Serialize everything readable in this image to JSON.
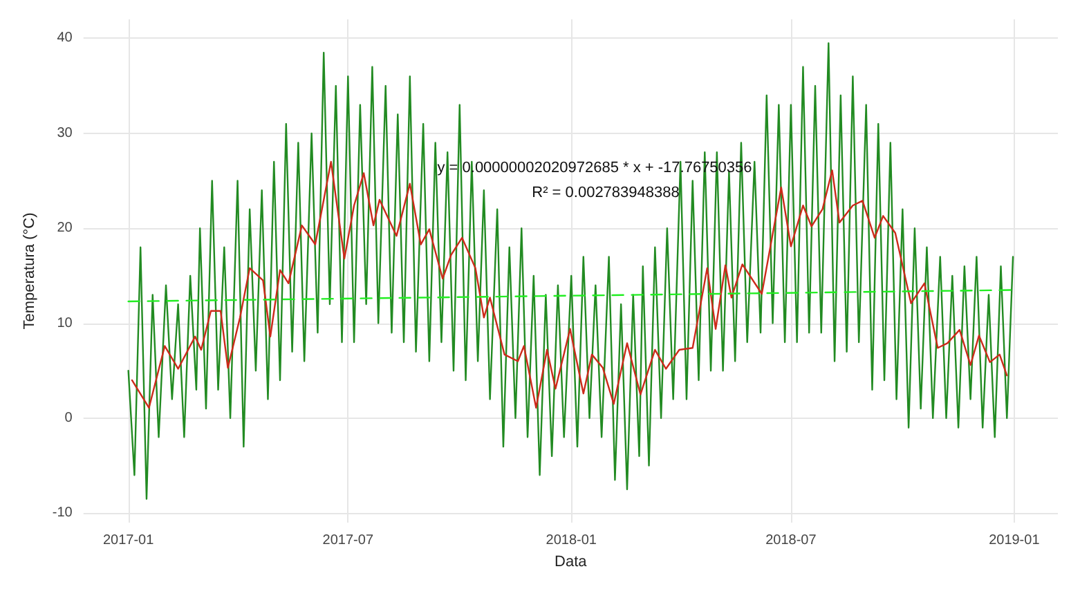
{
  "chart_data": {
    "type": "line",
    "xlabel": "Data",
    "ylabel": "Temperatura (°C)",
    "xlim": [
      "2016-11-25",
      "2019-02-06"
    ],
    "xticks": [
      "2017-01",
      "2017-07",
      "2018-01",
      "2018-07",
      "2019-01"
    ],
    "ylim": [
      -11,
      42
    ],
    "yticks": [
      -10,
      0,
      10,
      20,
      30,
      40
    ],
    "grid": true,
    "marker": "none",
    "annotations": [
      "y = 0.00000002020972685 * x + -17.76750356",
      "R² = 0.002783948388"
    ],
    "series": [
      {
        "color": "#228b22",
        "line_style": "solid",
        "x": [
          "2017-01-01",
          "2017-01-06",
          "2017-01-11",
          "2017-01-16",
          "2017-01-21",
          "2017-01-26",
          "2017-02-01",
          "2017-02-06",
          "2017-02-11",
          "2017-02-16",
          "2017-02-21",
          "2017-02-26",
          "2017-03-01",
          "2017-03-06",
          "2017-03-11",
          "2017-03-16",
          "2017-03-21",
          "2017-03-26",
          "2017-04-01",
          "2017-04-06",
          "2017-04-11",
          "2017-04-16",
          "2017-04-21",
          "2017-04-26",
          "2017-05-01",
          "2017-05-06",
          "2017-05-11",
          "2017-05-16",
          "2017-05-21",
          "2017-05-26",
          "2017-06-01",
          "2017-06-06",
          "2017-06-11",
          "2017-06-16",
          "2017-06-21",
          "2017-06-26",
          "2017-07-01",
          "2017-07-06",
          "2017-07-11",
          "2017-07-16",
          "2017-07-21",
          "2017-07-26",
          "2017-08-01",
          "2017-08-06",
          "2017-08-11",
          "2017-08-16",
          "2017-08-21",
          "2017-08-26",
          "2017-09-01",
          "2017-09-06",
          "2017-09-11",
          "2017-09-16",
          "2017-09-21",
          "2017-09-26",
          "2017-10-01",
          "2017-10-06",
          "2017-10-11",
          "2017-10-16",
          "2017-10-21",
          "2017-10-26",
          "2017-11-01",
          "2017-11-06",
          "2017-11-11",
          "2017-11-16",
          "2017-11-21",
          "2017-11-26",
          "2017-12-01",
          "2017-12-06",
          "2017-12-11",
          "2017-12-16",
          "2017-12-21",
          "2017-12-26",
          "2018-01-01",
          "2018-01-06",
          "2018-01-11",
          "2018-01-16",
          "2018-01-21",
          "2018-01-26",
          "2018-02-01",
          "2018-02-06",
          "2018-02-11",
          "2018-02-16",
          "2018-02-21",
          "2018-02-26",
          "2018-03-01",
          "2018-03-06",
          "2018-03-11",
          "2018-03-16",
          "2018-03-21",
          "2018-03-26",
          "2018-04-01",
          "2018-04-06",
          "2018-04-11",
          "2018-04-16",
          "2018-04-21",
          "2018-04-26",
          "2018-05-01",
          "2018-05-06",
          "2018-05-11",
          "2018-05-16",
          "2018-05-21",
          "2018-05-26",
          "2018-06-01",
          "2018-06-06",
          "2018-06-11",
          "2018-06-16",
          "2018-06-21",
          "2018-06-26",
          "2018-07-01",
          "2018-07-06",
          "2018-07-11",
          "2018-07-16",
          "2018-07-21",
          "2018-07-26",
          "2018-08-01",
          "2018-08-06",
          "2018-08-11",
          "2018-08-16",
          "2018-08-21",
          "2018-08-26",
          "2018-09-01",
          "2018-09-06",
          "2018-09-11",
          "2018-09-16",
          "2018-09-21",
          "2018-09-26",
          "2018-10-01",
          "2018-10-06",
          "2018-10-11",
          "2018-10-16",
          "2018-10-21",
          "2018-10-26",
          "2018-11-01",
          "2018-11-06",
          "2018-11-11",
          "2018-11-16",
          "2018-11-21",
          "2018-11-26",
          "2018-12-01",
          "2018-12-06",
          "2018-12-11",
          "2018-12-16",
          "2018-12-21",
          "2018-12-26",
          "2018-12-31"
        ],
        "values": [
          5,
          -6,
          18,
          -8.5,
          13,
          -2,
          14,
          2,
          12,
          -2,
          15,
          3,
          20,
          1,
          25,
          3,
          18,
          0,
          25,
          -3,
          22,
          5,
          24,
          2,
          27,
          4,
          31,
          7,
          29,
          6,
          30,
          9,
          38.5,
          12,
          35,
          8,
          36,
          8,
          33,
          12,
          37,
          10,
          35,
          9,
          32,
          8,
          36,
          7,
          31,
          6,
          29,
          8,
          28,
          5,
          33,
          4,
          27,
          6,
          24,
          2,
          22,
          -3,
          18,
          0,
          20,
          -2,
          15,
          -6,
          13,
          -4,
          14,
          -2,
          15,
          -3,
          17,
          0,
          14,
          -2,
          17,
          -6.5,
          12,
          -7.5,
          13,
          -4,
          16,
          -5,
          18,
          0,
          20,
          2,
          27,
          2,
          25,
          4,
          28,
          5,
          28,
          5,
          26,
          6,
          29,
          8,
          27,
          9,
          34,
          10,
          33,
          8,
          33,
          8,
          37,
          9,
          35,
          9,
          39.5,
          6,
          34,
          7,
          36,
          8,
          33,
          3,
          31,
          4,
          29,
          2,
          22,
          -1,
          20,
          1,
          18,
          0,
          17,
          0,
          15,
          -1,
          16,
          2,
          17,
          -1,
          13,
          -2,
          16,
          0,
          17
        ]
      },
      {
        "color": "#cc2a1a",
        "line_style": "solid",
        "x": [
          "2017-01-04",
          "2017-01-18",
          "2017-01-31",
          "2017-02-11",
          "2017-02-25",
          "2017-03-02",
          "2017-03-10",
          "2017-03-18",
          "2017-03-24",
          "2017-04-03",
          "2017-04-11",
          "2017-04-22",
          "2017-04-28",
          "2017-05-06",
          "2017-05-13",
          "2017-05-24",
          "2017-06-04",
          "2017-06-17",
          "2017-06-28",
          "2017-07-06",
          "2017-07-14",
          "2017-07-22",
          "2017-07-27",
          "2017-08-10",
          "2017-08-21",
          "2017-08-30",
          "2017-09-06",
          "2017-09-17",
          "2017-09-24",
          "2017-10-03",
          "2017-10-14",
          "2017-10-21",
          "2017-10-26",
          "2017-11-07",
          "2017-11-18",
          "2017-11-23",
          "2017-12-03",
          "2017-12-12",
          "2017-12-19",
          "2017-12-31",
          "2018-01-11",
          "2018-01-18",
          "2018-01-27",
          "2018-02-05",
          "2018-02-16",
          "2018-02-27",
          "2018-03-11",
          "2018-03-20",
          "2018-03-31",
          "2018-04-11",
          "2018-04-23",
          "2018-04-30",
          "2018-05-08",
          "2018-05-13",
          "2018-05-22",
          "2018-06-07",
          "2018-06-23",
          "2018-07-01",
          "2018-07-11",
          "2018-07-18",
          "2018-07-27",
          "2018-08-04",
          "2018-08-10",
          "2018-08-21",
          "2018-08-29",
          "2018-09-08",
          "2018-09-15",
          "2018-09-25",
          "2018-10-08",
          "2018-10-19",
          "2018-10-30",
          "2018-11-07",
          "2018-11-17",
          "2018-11-26",
          "2018-12-03",
          "2018-12-12",
          "2018-12-20",
          "2018-12-26"
        ],
        "values": [
          4,
          1.1,
          7.6,
          5.2,
          8.6,
          7.2,
          11.3,
          11.3,
          5.3,
          10.6,
          15.8,
          14.5,
          8.6,
          15.6,
          14.2,
          20.3,
          18.3,
          27,
          16.8,
          22.4,
          25.8,
          20.3,
          23,
          19.2,
          24.7,
          18.3,
          19.9,
          14.7,
          17.2,
          19,
          15.8,
          10.6,
          12.7,
          6.7,
          6,
          7.6,
          1.1,
          7.2,
          3.1,
          9.4,
          2.6,
          6.7,
          5.3,
          1.5,
          7.9,
          2.5,
          7.2,
          5.2,
          7.2,
          7.4,
          15.8,
          9.4,
          16.1,
          12.7,
          16.2,
          13.1,
          24.3,
          18.1,
          22.4,
          20.2,
          22,
          26.1,
          20.6,
          22.4,
          22.9,
          19,
          21.3,
          19.5,
          12.1,
          14.2,
          7.4,
          7.9,
          9.3,
          5.6,
          8.7,
          5.9,
          6.7,
          4.5
        ]
      },
      {
        "color": "#22ee22",
        "line_style": "dashed",
        "x": [
          "2017-01-01",
          "2018-12-31"
        ],
        "values": [
          12.3,
          13.5
        ]
      }
    ]
  }
}
